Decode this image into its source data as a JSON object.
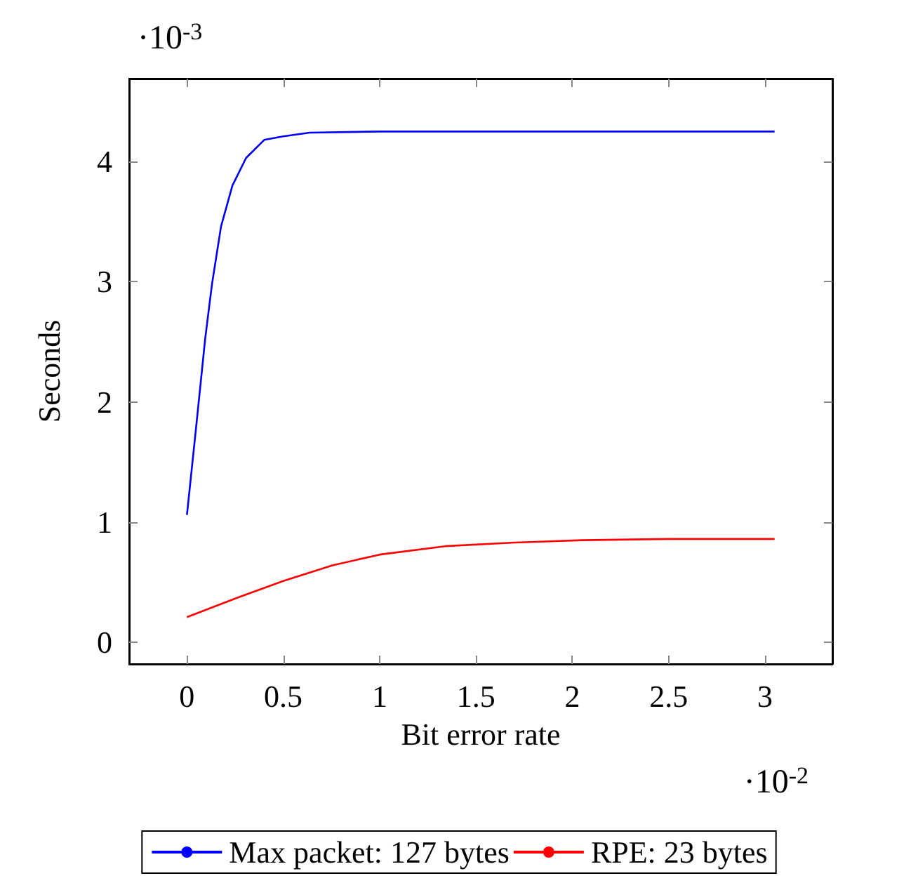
{
  "chart_data": {
    "type": "line",
    "xlabel": "Bit error rate",
    "ylabel": "Seconds",
    "annotations": [
      "·10$^{-3}$",
      "·10$^{-2}$"
    ],
    "xlim": [
      -0.3,
      3.35
    ],
    "ylim": [
      -0.18,
      4.69
    ],
    "xticks": [
      0,
      0.5,
      1,
      1.5,
      2,
      2.5,
      3
    ],
    "yticks": [
      0,
      1,
      2,
      3,
      4
    ],
    "grid": false,
    "legend": "bottom",
    "series": [
      {
        "name": "Max packet: 127 bytes",
        "color": "#0000ff",
        "x": [
          0,
          0.047,
          0.095,
          0.13,
          0.177,
          0.236,
          0.307,
          0.401,
          0.5,
          0.637,
          1,
          1.5,
          2,
          2.5,
          3.05
        ],
        "values": [
          1.06,
          1.78,
          2.53,
          2.98,
          3.46,
          3.8,
          4.03,
          4.18,
          4.21,
          4.24,
          4.25,
          4.25,
          4.25,
          4.25,
          4.25
        ]
      },
      {
        "name": "RPE: 23 bytes",
        "color": "#ff0000",
        "x": [
          0,
          0.26,
          0.5,
          0.755,
          1,
          1.34,
          1.7,
          2.05,
          2.5,
          3.05
        ],
        "values": [
          0.21,
          0.37,
          0.51,
          0.64,
          0.73,
          0.8,
          0.83,
          0.85,
          0.86,
          0.86
        ]
      }
    ]
  }
}
